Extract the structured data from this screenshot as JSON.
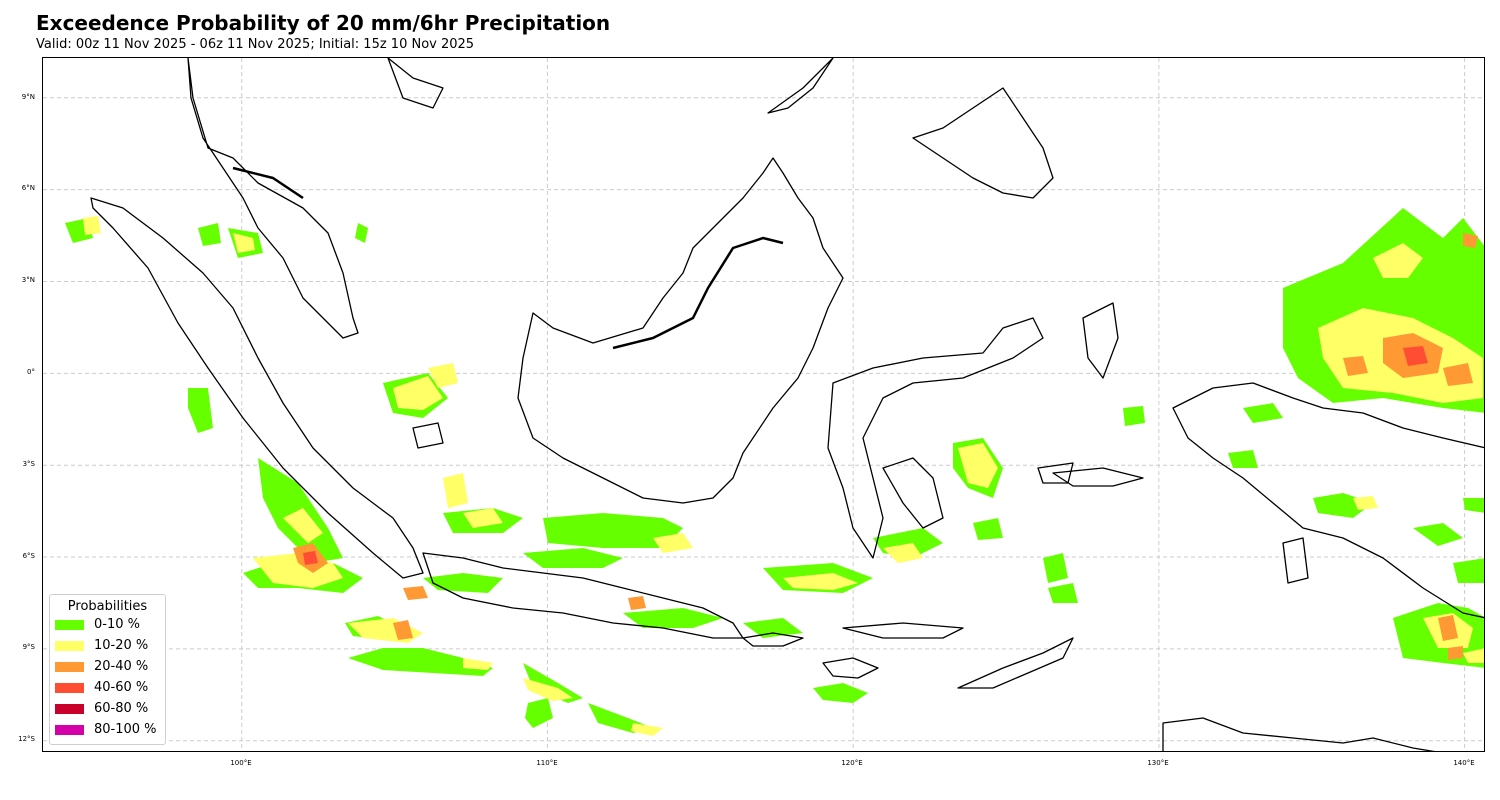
{
  "header": {
    "title": "Exceedence Probability of 20 mm/6hr Precipitation",
    "subtitle": "Valid: 00z 11 Nov 2025 - 06z 11 Nov 2025; Initial: 15z 10 Nov 2025"
  },
  "map": {
    "lat_labels": [
      "9°N",
      "6°N",
      "3°N",
      "0°",
      "3°S",
      "6°S",
      "9°S",
      "12°S"
    ],
    "lon_labels": [
      "100°E",
      "110°E",
      "120°E",
      "130°E",
      "140°E"
    ],
    "extent": {
      "lon_min": 93.5,
      "lon_max": 140.7,
      "lat_min": -12.4,
      "lat_max": 10.3
    },
    "gridlines": true
  },
  "legend": {
    "title": "Probabilities",
    "items": [
      {
        "label": "0-10 %",
        "color": "#66ff00"
      },
      {
        "label": "10-20 %",
        "color": "#ffff66"
      },
      {
        "label": "20-40 %",
        "color": "#ff9933"
      },
      {
        "label": "40-60 %",
        "color": "#ff4d33"
      },
      {
        "label": "60-80 %",
        "color": "#c8002a"
      },
      {
        "label": "80-100 %",
        "color": "#d400aa"
      }
    ]
  },
  "colors": {
    "coastline": "#000000",
    "gridline": "#cccccc"
  }
}
